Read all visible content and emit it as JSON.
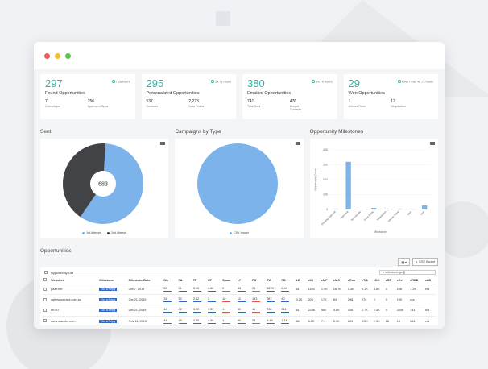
{
  "colors": {
    "accent": "#2db5a3",
    "blue": "#7bb3ea",
    "dark": "#424347",
    "badge": "#2b66c9",
    "red": "#e8534a"
  },
  "stats": [
    {
      "number": "297",
      "title": "Found Opportunities",
      "hours": "7.28 hours",
      "sub": [
        {
          "v": "7",
          "l": "Campaigns"
        },
        {
          "v": "256",
          "l": "Approved Opps"
        }
      ]
    },
    {
      "number": "295",
      "title": "Personalized Opportunities",
      "hours": "14.75 hours",
      "sub": [
        {
          "v": "537",
          "l": "Contacts"
        },
        {
          "v": "2,273",
          "l": "Data Points"
        }
      ]
    },
    {
      "number": "380",
      "title": "Emailed Opportunities",
      "hours": "24.70 hours",
      "sub": [
        {
          "v": "741",
          "l": "Total Sent"
        },
        {
          "v": "476",
          "l": "Unique Contacts"
        }
      ]
    },
    {
      "number": "29",
      "title": "Won Opportunities",
      "hours": "Total Time: 46.73 hours",
      "sub": [
        {
          "v": "1",
          "l": "Almost There"
        },
        {
          "v": "12",
          "l": "Negotiation"
        }
      ]
    }
  ],
  "charts": {
    "sent": {
      "title": "Sent",
      "center": "683",
      "legend": [
        "1st Attempt",
        "2nd Attempt"
      ]
    },
    "campaigns": {
      "title": "Campaigns by Type",
      "legend": [
        "CSV Import"
      ]
    },
    "milestones": {
      "title": "Opportunity Milestones",
      "ylabel": "Opportunity Count",
      "xlabel": "Milestone"
    }
  },
  "chart_data": [
    {
      "type": "pie",
      "title": "Sent",
      "categories": [
        "1st Attempt",
        "2nd Attempt"
      ],
      "values": [
        400,
        283
      ],
      "center_label": "683"
    },
    {
      "type": "pie",
      "title": "Campaigns by Type",
      "categories": [
        "CSV Import"
      ],
      "values": [
        100
      ]
    },
    {
      "type": "bar",
      "title": "Opportunity Milestones",
      "categories": [
        "Pending Approval",
        "Approved",
        "Sent Emails",
        "Got a Reply",
        "Negotiation",
        "Almost There",
        "Won",
        "Lost"
      ],
      "values": [
        2,
        320,
        5,
        10,
        6,
        3,
        1,
        28
      ],
      "ylim": [
        0,
        400
      ],
      "yticks": [
        0,
        100,
        200,
        300,
        400
      ],
      "ylabel": "Opportunity Count",
      "xlabel": "Milestone"
    }
  ],
  "opportunities": {
    "title": "Opportunities",
    "list_label": "Opportunity List",
    "search_value": "milestone:got[]",
    "csv_export": "CSV Export",
    "columns": [
      "Websites",
      "Milestone",
      "Milestone Date",
      "DA",
      "PA",
      "TF",
      "CF",
      "Spam",
      "LY",
      "FB",
      "TW",
      "PB",
      "LD",
      "eMi",
      "eMP",
      "eMO",
      "eRnk",
      "eTrk",
      "eBH",
      "eBT",
      "eRef",
      "eRDD",
      "eLB"
    ],
    "rows": [
      [
        "pazz.net",
        "Got a Reply",
        "Oct 7, 2019",
        "50",
        "51",
        "9.10",
        "4.60",
        "2",
        "43",
        "21",
        "187K",
        "6.4K",
        "61",
        "115K",
        "1.9K",
        "28.7K",
        "1.4K",
        "9.1K",
        "4.8K",
        "0",
        "298",
        "1.2K",
        "n/a"
      ],
      [
        "agilesaustralia.com.au",
        "Got a Reply",
        "Oct 21, 2019",
        "31",
        "50",
        "2.42",
        "1",
        "16",
        "12",
        "163",
        "287",
        "40",
        "3.2K",
        "208",
        "17K",
        "84",
        "298",
        "276",
        "0",
        "0",
        "195",
        "n/a"
      ],
      [
        "mr.eu",
        "Got a Reply",
        "Oct 21, 2019",
        "44",
        "42",
        "4.20",
        "4.37",
        "1",
        "80",
        "46",
        "736",
        "311",
        "61",
        "223K",
        "960",
        "4.8K",
        "408",
        "2.7K",
        "2.4K",
        "4",
        "200K",
        "731",
        "n/a"
      ],
      [
        "www.wazoha.com",
        "Got a Reply",
        "Nov 11, 2019",
        "41",
        "43",
        "4.30",
        "4.09",
        "1",
        "40",
        "23",
        "9.1K",
        "7.1K",
        "86",
        "8.2K",
        "7.1",
        "5.9K",
        "269",
        "2.2K",
        "2.1K",
        "16",
        "18",
        "584",
        "n/a"
      ]
    ]
  }
}
